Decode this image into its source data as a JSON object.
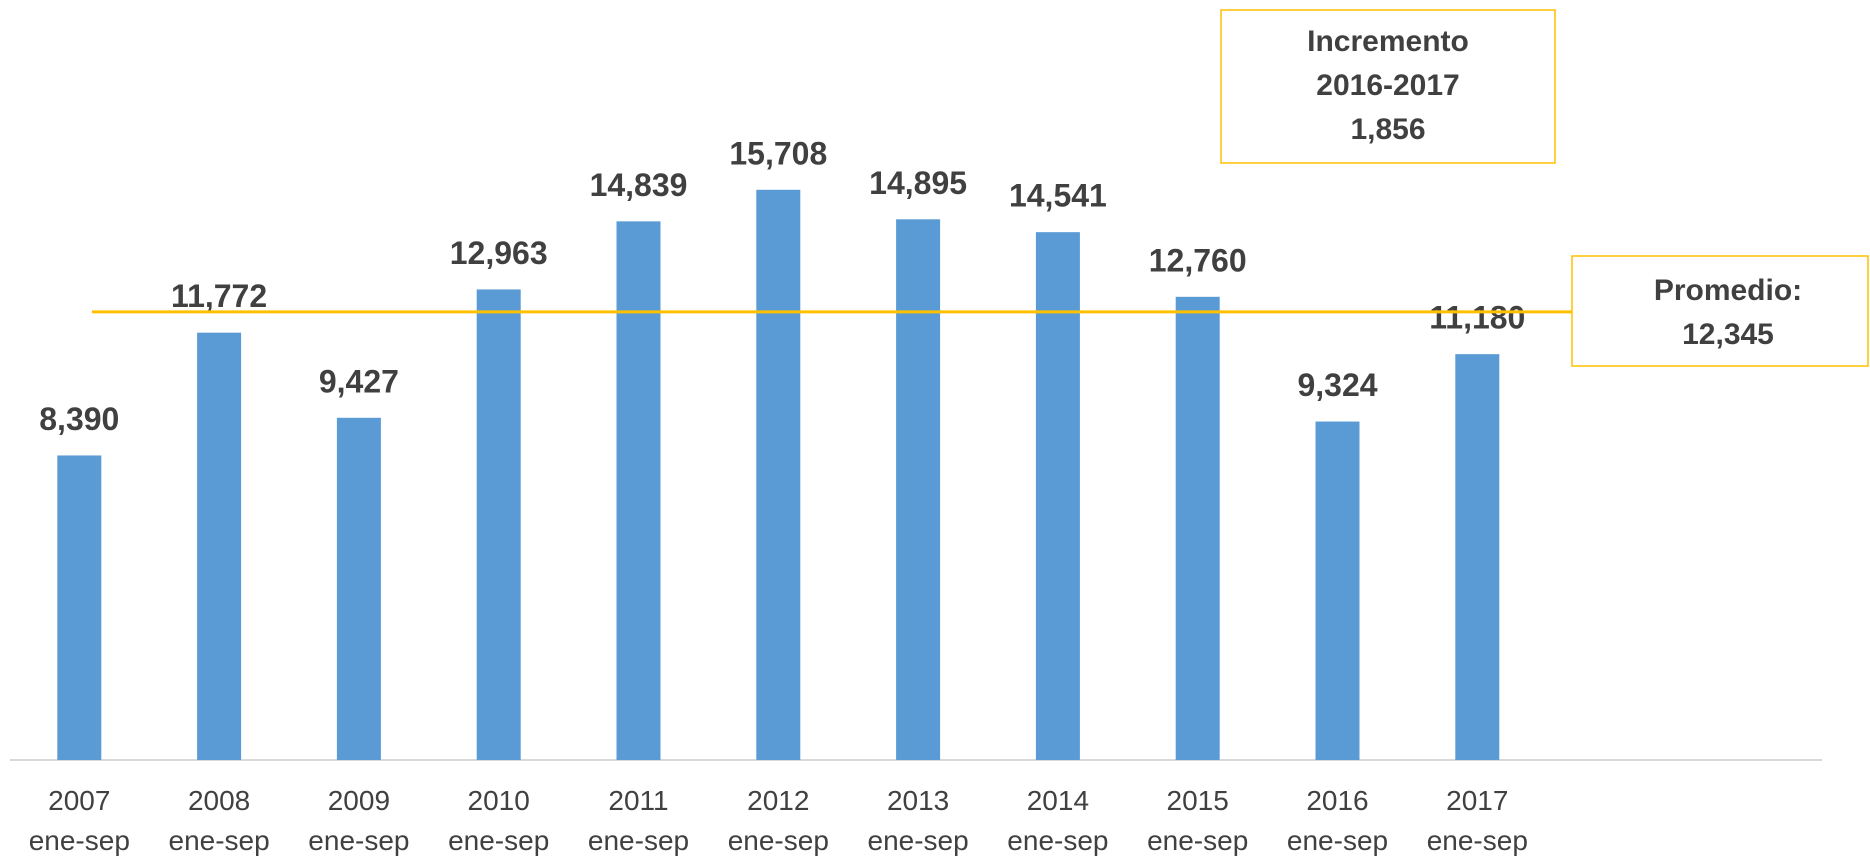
{
  "chart_data": {
    "type": "bar",
    "categories": [
      "2007 ene-sep",
      "2008 ene-sep",
      "2009 ene-sep",
      "2010 ene-sep",
      "2011 ene-sep",
      "2012 ene-sep",
      "2013 ene-sep",
      "2014 ene-sep",
      "2015 ene-sep",
      "2016 ene-sep",
      "2017 ene-sep"
    ],
    "values": [
      8390,
      11772,
      9427,
      12963,
      14839,
      15708,
      14895,
      14541,
      12760,
      9324,
      11180
    ],
    "value_labels": [
      "8,390",
      "11,772",
      "9,427",
      "12,963",
      "14,839",
      "15,708",
      "14,895",
      "14,541",
      "12,760",
      "9,324",
      "11,180"
    ],
    "color": "#5b9bd5",
    "ylim": [
      0,
      20000
    ],
    "average": {
      "label": "Promedio:",
      "value": 12345,
      "value_label": "12,345",
      "color": "#ffc000"
    },
    "annotation": [
      "Incremento",
      "2016-2017",
      "1,856"
    ]
  }
}
